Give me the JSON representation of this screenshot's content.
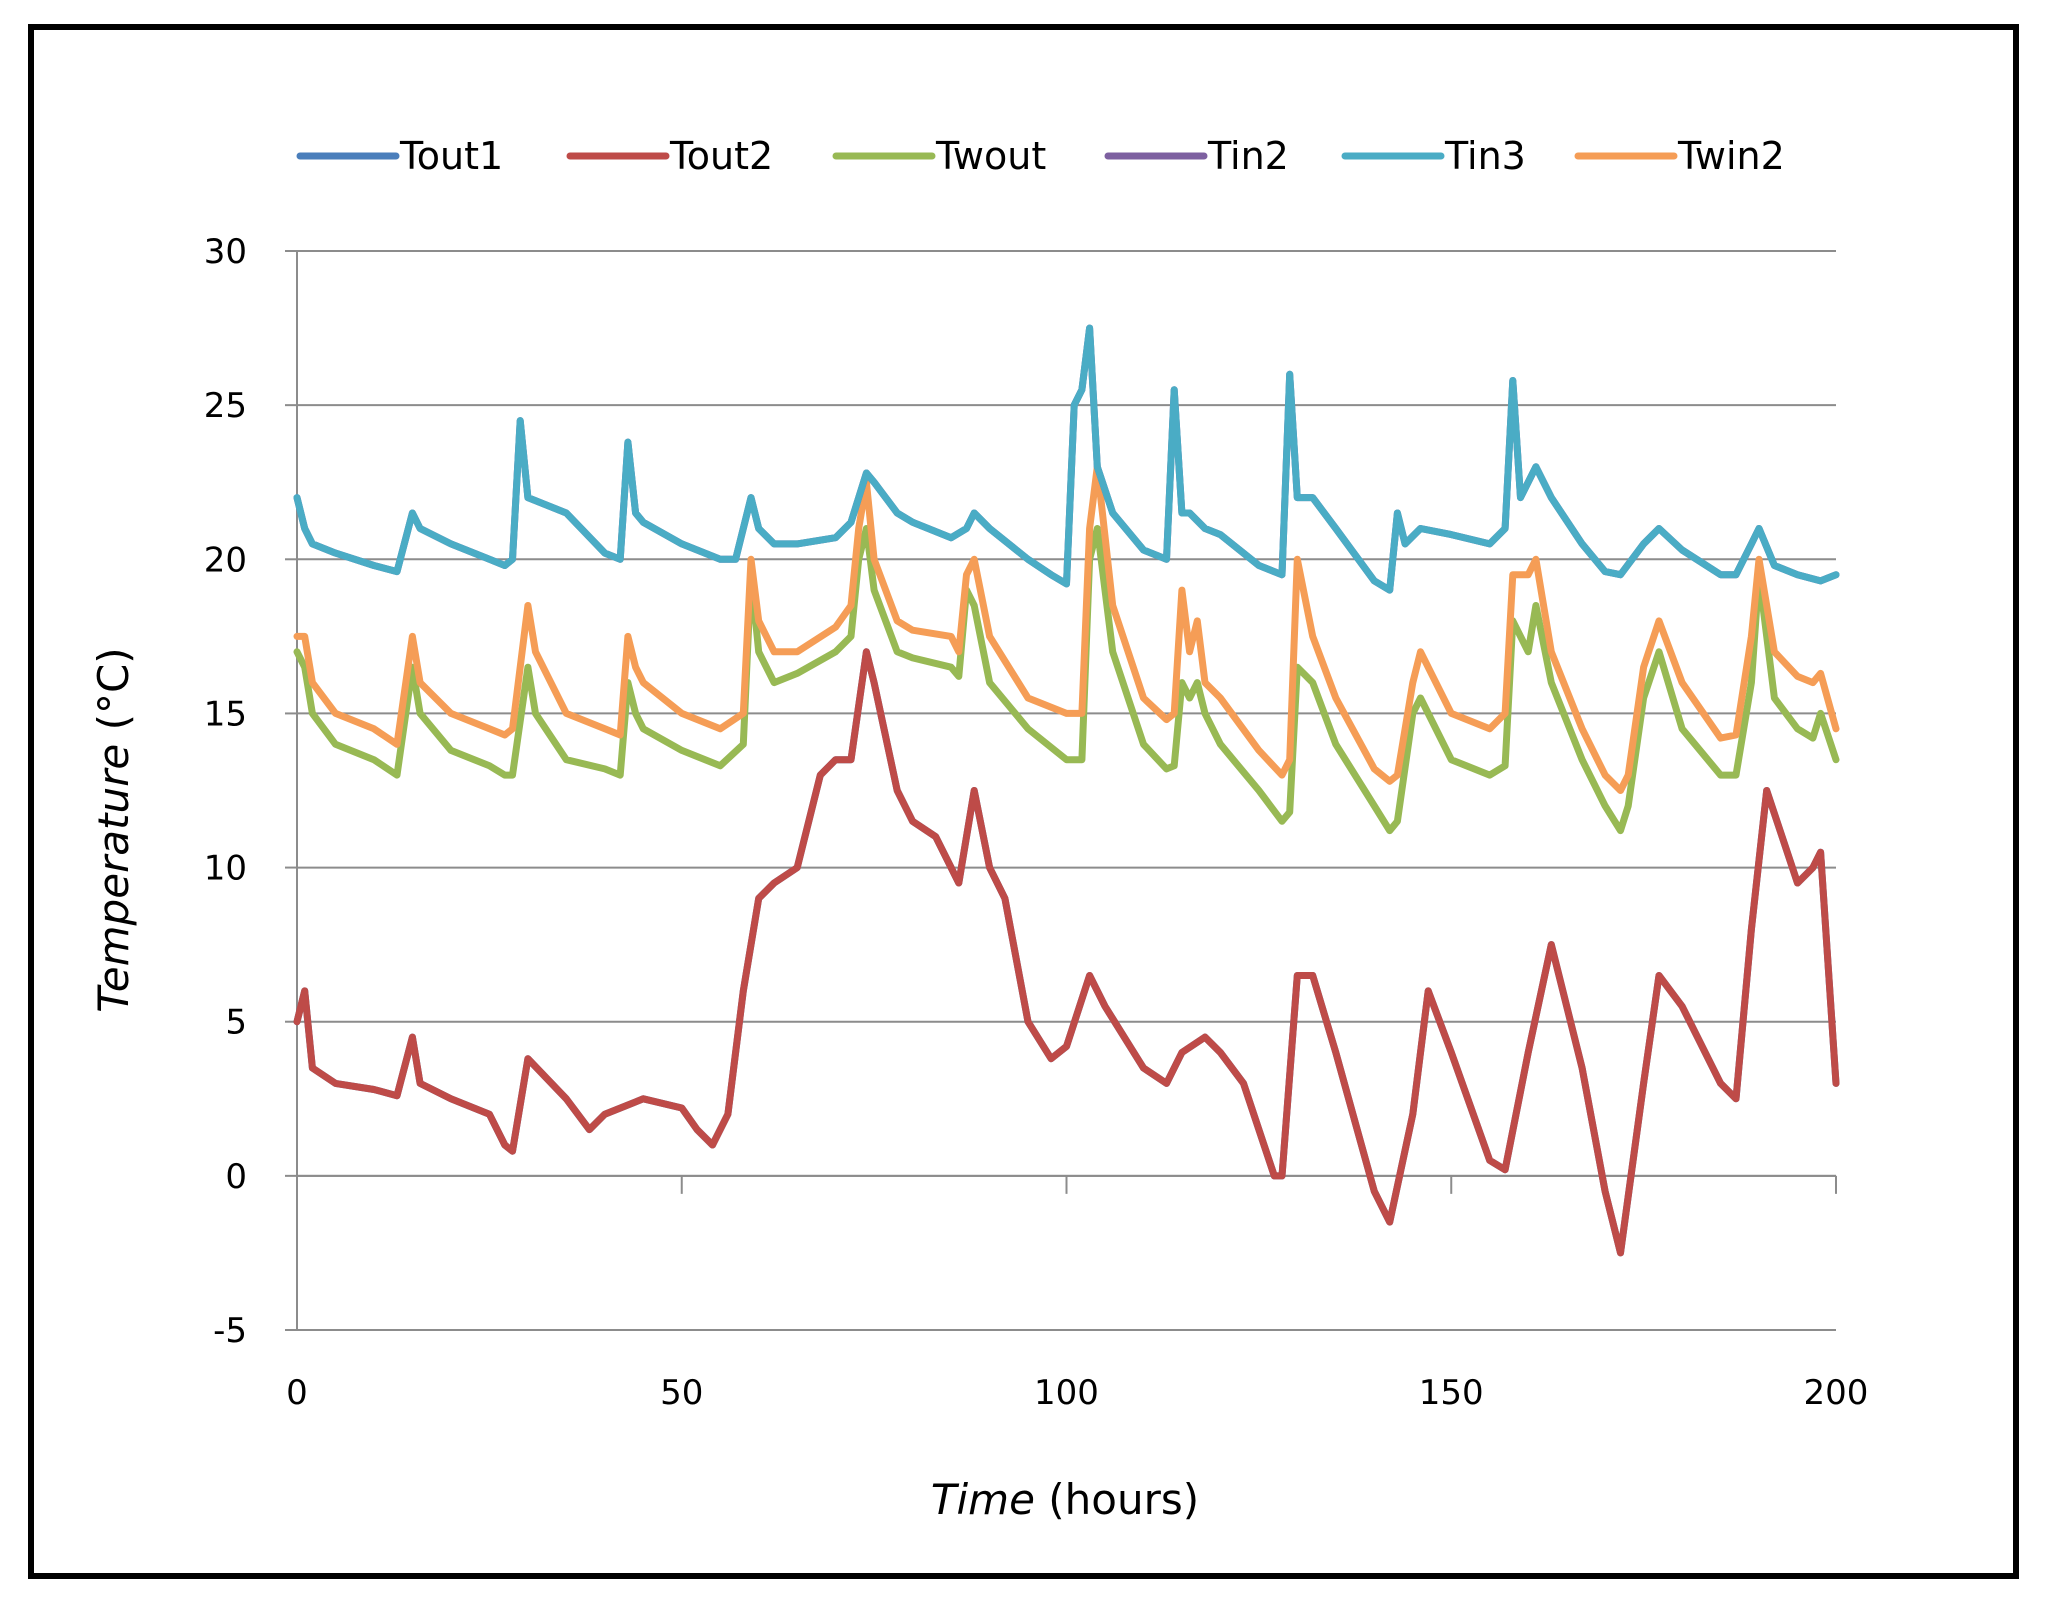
{
  "chart_data": {
    "type": "line",
    "title": "",
    "xlabel_italic": "Time",
    "xlabel_rest": " (hours)",
    "ylabel_italic": "Temperature",
    "ylabel_rest": " (°C)",
    "xlim": [
      0,
      200
    ],
    "ylim": [
      -5,
      30
    ],
    "xticks": [
      0,
      50,
      100,
      150,
      200
    ],
    "yticks": [
      -5,
      0,
      5,
      10,
      15,
      20,
      25,
      30
    ],
    "grid": "horizontal",
    "legend_position": "top",
    "series": [
      {
        "name": "Tout1",
        "color": "#4a7ebb",
        "x": [
          0,
          1,
          2,
          5,
          10,
          13,
          15,
          16,
          20,
          25,
          27,
          28,
          30,
          35,
          38,
          40,
          45,
          50,
          52,
          54,
          56,
          58,
          60,
          62,
          65,
          68,
          70,
          72,
          74,
          75,
          78,
          80,
          83,
          86,
          88,
          90,
          92,
          95,
          98,
          100,
          103,
          105,
          110,
          113,
          115,
          118,
          120,
          123,
          127,
          128,
          130,
          132,
          135,
          140,
          142,
          145,
          147,
          150,
          155,
          157,
          160,
          163,
          167,
          170,
          172,
          175,
          177,
          180,
          185,
          187,
          189,
          191,
          193,
          195,
          197,
          198,
          200
        ],
        "y": [
          5,
          6,
          3.5,
          3,
          2.8,
          2.6,
          4.5,
          3,
          2.5,
          2,
          1,
          0.8,
          3.8,
          2.5,
          1.5,
          2,
          2.5,
          2.2,
          1.5,
          1,
          2,
          6,
          9,
          9.5,
          10,
          13,
          13.5,
          13.5,
          17,
          16,
          12.5,
          11.5,
          11,
          9.5,
          12.5,
          10,
          9,
          5,
          3.8,
          4.2,
          6.5,
          5.5,
          3.5,
          3,
          4,
          4.5,
          4,
          3,
          0,
          0,
          6.5,
          6.5,
          4,
          -0.5,
          -1.5,
          2,
          6,
          4,
          0.5,
          0.2,
          4,
          7.5,
          3.5,
          -0.5,
          -2.5,
          3,
          6.5,
          5.5,
          3,
          2.5,
          8,
          12.5,
          11,
          9.5,
          10,
          10.5,
          3
        ]
      },
      {
        "name": "Tout2",
        "color": "#be4b48",
        "x": [
          0,
          1,
          2,
          5,
          10,
          13,
          15,
          16,
          20,
          25,
          27,
          28,
          30,
          35,
          38,
          40,
          45,
          50,
          52,
          54,
          56,
          58,
          60,
          62,
          65,
          68,
          70,
          72,
          74,
          75,
          78,
          80,
          83,
          86,
          88,
          90,
          92,
          95,
          98,
          100,
          103,
          105,
          110,
          113,
          115,
          118,
          120,
          123,
          127,
          128,
          130,
          132,
          135,
          140,
          142,
          145,
          147,
          150,
          155,
          157,
          160,
          163,
          167,
          170,
          172,
          175,
          177,
          180,
          185,
          187,
          189,
          191,
          193,
          195,
          197,
          198,
          200
        ],
        "y": [
          5,
          6,
          3.5,
          3,
          2.8,
          2.6,
          4.5,
          3,
          2.5,
          2,
          1,
          0.8,
          3.8,
          2.5,
          1.5,
          2,
          2.5,
          2.2,
          1.5,
          1,
          2,
          6,
          9,
          9.5,
          10,
          13,
          13.5,
          13.5,
          17,
          16,
          12.5,
          11.5,
          11,
          9.5,
          12.5,
          10,
          9,
          5,
          3.8,
          4.2,
          6.5,
          5.5,
          3.5,
          3,
          4,
          4.5,
          4,
          3,
          0,
          0,
          6.5,
          6.5,
          4,
          -0.5,
          -1.5,
          2,
          6,
          4,
          0.5,
          0.2,
          4,
          7.5,
          3.5,
          -0.5,
          -2.5,
          3,
          6.5,
          5.5,
          3,
          2.5,
          8,
          12.5,
          11,
          9.5,
          10,
          10.5,
          3
        ]
      },
      {
        "name": "Twout",
        "color": "#98b954",
        "x": [
          0,
          1,
          2,
          5,
          10,
          13,
          15,
          16,
          20,
          25,
          27,
          28,
          30,
          31,
          35,
          40,
          42,
          43,
          44,
          45,
          50,
          55,
          58,
          59,
          60,
          62,
          65,
          70,
          72,
          73,
          74,
          75,
          78,
          80,
          85,
          86,
          87,
          88,
          90,
          95,
          100,
          102,
          103,
          104,
          106,
          110,
          113,
          114,
          115,
          116,
          117,
          118,
          120,
          125,
          128,
          129,
          130,
          132,
          135,
          140,
          142,
          143,
          145,
          146,
          150,
          155,
          157,
          158,
          160,
          161,
          163,
          167,
          170,
          172,
          173,
          175,
          177,
          180,
          185,
          187,
          189,
          190,
          192,
          195,
          197,
          198,
          200
        ],
        "y": [
          17,
          16.5,
          15,
          14,
          13.5,
          13,
          16.5,
          15,
          13.8,
          13.3,
          13,
          13,
          16.5,
          15,
          13.5,
          13.2,
          13,
          16,
          15,
          14.5,
          13.8,
          13.3,
          14,
          19.5,
          17,
          16,
          16.3,
          17,
          17.5,
          20,
          21,
          19,
          17,
          16.8,
          16.5,
          16.2,
          19,
          18.5,
          16,
          14.5,
          13.5,
          13.5,
          20,
          21,
          17,
          14,
          13.2,
          13.3,
          16,
          15.5,
          16,
          15,
          14,
          12.5,
          11.5,
          11.8,
          16.5,
          16,
          14,
          12,
          11.2,
          11.5,
          15,
          15.5,
          13.5,
          13,
          13.3,
          18,
          17,
          18.5,
          16,
          13.5,
          12,
          11.2,
          12,
          15.5,
          17,
          14.5,
          13,
          13,
          16,
          19.5,
          15.5,
          14.5,
          14.2,
          15,
          13.5
        ]
      },
      {
        "name": "Tin2",
        "color": "#7d60a0",
        "x": [
          0,
          1,
          2,
          5,
          10,
          13,
          15,
          16,
          20,
          25,
          27,
          28,
          29,
          30,
          35,
          40,
          42,
          43,
          44,
          45,
          50,
          55,
          57,
          59,
          60,
          62,
          65,
          70,
          72,
          74,
          75,
          78,
          80,
          85,
          87,
          88,
          90,
          95,
          98,
          100,
          101,
          102,
          103,
          104,
          106,
          110,
          113,
          114,
          115,
          116,
          118,
          120,
          125,
          128,
          129,
          130,
          132,
          135,
          140,
          142,
          143,
          144,
          146,
          150,
          155,
          157,
          158,
          159,
          160,
          161,
          163,
          167,
          170,
          172,
          175,
          177,
          180,
          185,
          187,
          189,
          190,
          192,
          195,
          198,
          200
        ],
        "y": [
          22,
          21,
          20.5,
          20.2,
          19.8,
          19.6,
          21.5,
          21,
          20.5,
          20,
          19.8,
          20,
          24.5,
          22,
          21.5,
          20.2,
          20,
          23.8,
          21.5,
          21.2,
          20.5,
          20,
          20,
          22,
          21,
          20.5,
          20.5,
          20.7,
          21.2,
          22.8,
          22.5,
          21.5,
          21.2,
          20.7,
          21,
          21.5,
          21,
          20,
          19.5,
          19.2,
          25,
          25.5,
          27.5,
          23,
          21.5,
          20.3,
          20,
          25.5,
          21.5,
          21.5,
          21,
          20.8,
          19.8,
          19.5,
          26,
          22,
          22,
          21,
          19.3,
          19,
          21.5,
          20.5,
          21,
          20.8,
          20.5,
          21,
          25.8,
          22,
          22.5,
          23,
          22,
          20.5,
          19.6,
          19.5,
          20.5,
          21,
          20.3,
          19.5,
          19.5,
          20.5,
          21,
          19.8,
          19.5,
          19.3,
          19.5
        ]
      },
      {
        "name": "Tin3",
        "color": "#4aacc5",
        "x": [
          0,
          1,
          2,
          5,
          10,
          13,
          15,
          16,
          20,
          25,
          27,
          28,
          29,
          30,
          35,
          40,
          42,
          43,
          44,
          45,
          50,
          55,
          57,
          59,
          60,
          62,
          65,
          70,
          72,
          74,
          75,
          78,
          80,
          85,
          87,
          88,
          90,
          95,
          98,
          100,
          101,
          102,
          103,
          104,
          106,
          110,
          113,
          114,
          115,
          116,
          118,
          120,
          125,
          128,
          129,
          130,
          132,
          135,
          140,
          142,
          143,
          144,
          146,
          150,
          155,
          157,
          158,
          159,
          160,
          161,
          163,
          167,
          170,
          172,
          175,
          177,
          180,
          185,
          187,
          189,
          190,
          192,
          195,
          198,
          200
        ],
        "y": [
          22,
          21,
          20.5,
          20.2,
          19.8,
          19.6,
          21.5,
          21,
          20.5,
          20,
          19.8,
          20,
          24.5,
          22,
          21.5,
          20.2,
          20,
          23.8,
          21.5,
          21.2,
          20.5,
          20,
          20,
          22,
          21,
          20.5,
          20.5,
          20.7,
          21.2,
          22.8,
          22.5,
          21.5,
          21.2,
          20.7,
          21,
          21.5,
          21,
          20,
          19.5,
          19.2,
          25,
          25.5,
          27.5,
          23,
          21.5,
          20.3,
          20,
          25.5,
          21.5,
          21.5,
          21,
          20.8,
          19.8,
          19.5,
          26,
          22,
          22,
          21,
          19.3,
          19,
          21.5,
          20.5,
          21,
          20.8,
          20.5,
          21,
          25.8,
          22,
          22.5,
          23,
          22,
          20.5,
          19.6,
          19.5,
          20.5,
          21,
          20.3,
          19.5,
          19.5,
          20.5,
          21,
          19.8,
          19.5,
          19.3,
          19.5
        ]
      },
      {
        "name": "Twin2",
        "color": "#f59d56",
        "x": [
          0,
          1,
          2,
          5,
          10,
          13,
          15,
          16,
          20,
          25,
          27,
          28,
          30,
          31,
          35,
          40,
          42,
          43,
          44,
          45,
          50,
          55,
          58,
          59,
          60,
          62,
          65,
          70,
          72,
          73,
          74,
          75,
          78,
          80,
          85,
          86,
          87,
          88,
          90,
          95,
          100,
          102,
          103,
          104,
          106,
          110,
          113,
          114,
          115,
          116,
          117,
          118,
          120,
          125,
          128,
          129,
          130,
          132,
          135,
          140,
          142,
          143,
          145,
          146,
          150,
          155,
          157,
          158,
          160,
          161,
          163,
          167,
          170,
          172,
          173,
          175,
          177,
          180,
          185,
          187,
          189,
          190,
          192,
          195,
          197,
          198,
          200
        ],
        "y": [
          17.5,
          17.5,
          16,
          15,
          14.5,
          14,
          17.5,
          16,
          15,
          14.5,
          14.3,
          14.5,
          18.5,
          17,
          15,
          14.5,
          14.3,
          17.5,
          16.5,
          16,
          15,
          14.5,
          15,
          20,
          18,
          17,
          17,
          17.8,
          18.5,
          21,
          22.5,
          20,
          18,
          17.7,
          17.5,
          17,
          19.5,
          20,
          17.5,
          15.5,
          15,
          15,
          21,
          23,
          18.5,
          15.5,
          14.8,
          15,
          19,
          17,
          18,
          16,
          15.5,
          13.8,
          13,
          13.5,
          20,
          17.5,
          15.5,
          13.2,
          12.8,
          13,
          16,
          17,
          15,
          14.5,
          15,
          19.5,
          19.5,
          20,
          17,
          14.5,
          13,
          12.5,
          13,
          16.5,
          18,
          16,
          14.2,
          14.3,
          17.5,
          20,
          17,
          16.2,
          16,
          16.3,
          14.5
        ]
      }
    ]
  }
}
